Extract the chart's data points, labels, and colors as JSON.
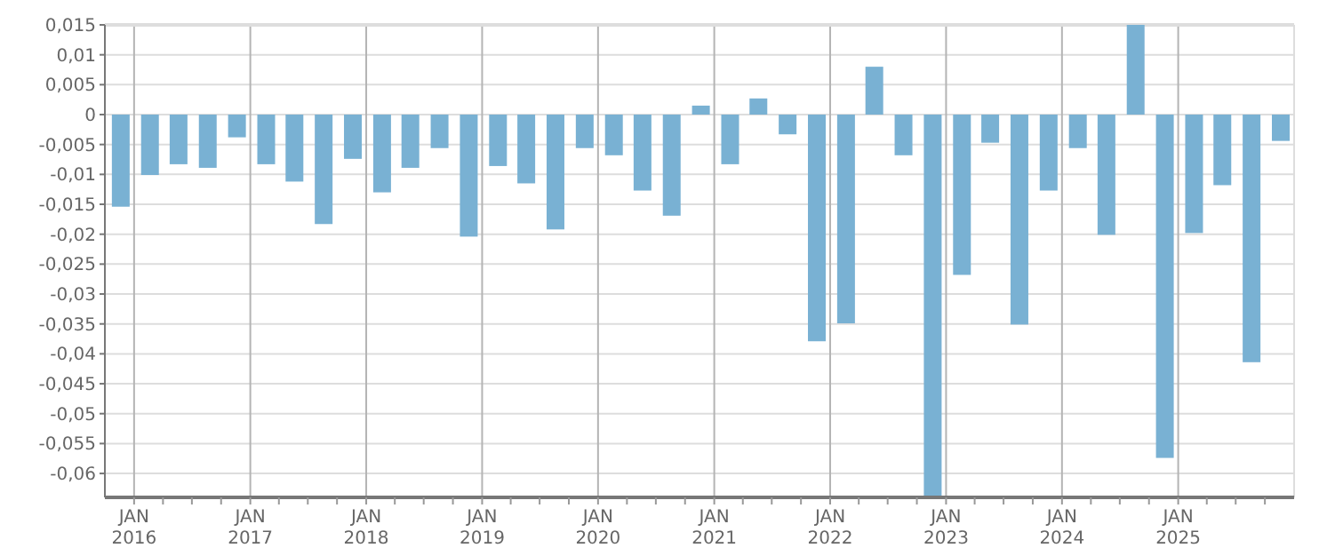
{
  "chart_data": {
    "type": "bar",
    "color": "#79b1d3",
    "x": [
      "2015-11-20",
      "2016-02-20",
      "2016-05-20",
      "2016-08-20",
      "2016-11-20",
      "2017-02-20",
      "2017-05-20",
      "2017-08-20",
      "2017-11-20",
      "2018-02-20",
      "2018-05-20",
      "2018-08-20",
      "2018-11-20",
      "2019-02-20",
      "2019-05-20",
      "2019-08-20",
      "2019-11-20",
      "2020-02-20",
      "2020-05-20",
      "2020-08-20",
      "2020-11-20",
      "2021-02-20",
      "2021-05-20",
      "2021-08-20",
      "2021-11-20",
      "2022-02-20",
      "2022-05-20",
      "2022-08-20",
      "2022-11-20",
      "2023-02-20",
      "2023-05-20",
      "2023-08-20",
      "2023-11-20",
      "2024-02-20",
      "2024-05-20",
      "2024-08-20",
      "2024-11-20",
      "2025-02-20",
      "2025-05-20",
      "2025-08-20",
      "2025-11-20"
    ],
    "values": [
      -0.0154,
      -0.0101,
      -0.0083,
      -0.0089,
      -0.0038,
      -0.0083,
      -0.0112,
      -0.0183,
      -0.0074,
      -0.013,
      -0.0089,
      -0.0056,
      -0.0204,
      -0.0086,
      -0.0115,
      -0.0192,
      -0.0056,
      -0.0068,
      -0.0127,
      -0.0169,
      0.0015,
      -0.0083,
      0.0027,
      -0.0033,
      -0.0379,
      -0.0349,
      0.008,
      -0.0068,
      -0.064,
      -0.0268,
      -0.0047,
      -0.0351,
      -0.0127,
      -0.0056,
      -0.0201,
      0.015,
      -0.0574,
      -0.0198,
      -0.0118,
      -0.0414,
      -0.0044
    ],
    "xlim": [
      "2015-10-01",
      "2026-01-01"
    ],
    "xticks": [
      {
        "value": "2016-01-01",
        "label": "JAN\n2016"
      },
      {
        "value": "2016-04-01",
        "label": null
      },
      {
        "value": "2016-07-01",
        "label": null
      },
      {
        "value": "2016-10-01",
        "label": null
      },
      {
        "value": "2017-01-01",
        "label": "JAN\n2017"
      },
      {
        "value": "2017-04-01",
        "label": null
      },
      {
        "value": "2017-07-01",
        "label": null
      },
      {
        "value": "2017-10-01",
        "label": null
      },
      {
        "value": "2018-01-01",
        "label": "JAN\n2018"
      },
      {
        "value": "2018-04-01",
        "label": null
      },
      {
        "value": "2018-07-01",
        "label": null
      },
      {
        "value": "2018-10-01",
        "label": null
      },
      {
        "value": "2019-01-01",
        "label": "JAN\n2019"
      },
      {
        "value": "2019-04-01",
        "label": null
      },
      {
        "value": "2019-07-01",
        "label": null
      },
      {
        "value": "2019-10-01",
        "label": null
      },
      {
        "value": "2020-01-01",
        "label": "JAN\n2020"
      },
      {
        "value": "2020-04-01",
        "label": null
      },
      {
        "value": "2020-07-01",
        "label": null
      },
      {
        "value": "2020-10-01",
        "label": null
      },
      {
        "value": "2021-01-01",
        "label": "JAN\n2021"
      },
      {
        "value": "2021-04-01",
        "label": null
      },
      {
        "value": "2021-07-01",
        "label": null
      },
      {
        "value": "2021-10-01",
        "label": null
      },
      {
        "value": "2022-01-01",
        "label": "JAN\n2022"
      },
      {
        "value": "2022-04-01",
        "label": null
      },
      {
        "value": "2022-07-01",
        "label": null
      },
      {
        "value": "2022-10-01",
        "label": null
      },
      {
        "value": "2023-01-01",
        "label": "JAN\n2023"
      },
      {
        "value": "2023-04-01",
        "label": null
      },
      {
        "value": "2023-07-01",
        "label": null
      },
      {
        "value": "2023-10-01",
        "label": null
      },
      {
        "value": "2024-01-01",
        "label": "JAN\n2024"
      },
      {
        "value": "2024-04-01",
        "label": null
      },
      {
        "value": "2024-07-01",
        "label": null
      },
      {
        "value": "2024-10-01",
        "label": null
      },
      {
        "value": "2025-01-01",
        "label": "JAN\n2025"
      },
      {
        "value": "2025-04-01",
        "label": null
      },
      {
        "value": "2025-07-01",
        "label": null
      },
      {
        "value": "2025-10-01",
        "label": null
      }
    ],
    "ylim": [
      -0.064,
      0.015
    ],
    "yticks": [
      {
        "value": 0.015,
        "label": "0,015"
      },
      {
        "value": 0.01,
        "label": "0,01"
      },
      {
        "value": 0.005,
        "label": "0,005"
      },
      0,
      {
        "value": -0.005,
        "label": "-0,005"
      },
      {
        "value": -0.01,
        "label": "-0,01"
      },
      {
        "value": -0.015,
        "label": "-0,015"
      },
      {
        "value": -0.02,
        "label": "-0,02"
      },
      {
        "value": -0.025,
        "label": "-0,025"
      },
      {
        "value": -0.03,
        "label": "-0,03"
      },
      {
        "value": -0.035,
        "label": "-0,035"
      },
      {
        "value": -0.04,
        "label": "-0,04"
      },
      {
        "value": -0.045,
        "label": "-0,045"
      },
      {
        "value": -0.05,
        "label": "-0,05"
      },
      {
        "value": -0.055,
        "label": "-0,055"
      },
      {
        "value": -0.06,
        "label": "-0,06"
      }
    ],
    "grid": true
  }
}
